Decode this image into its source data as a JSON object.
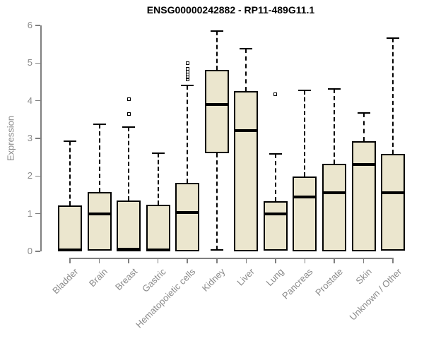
{
  "title": "ENSG00000242882 - RP11-489G11.1",
  "chart_data": {
    "type": "boxplot",
    "title": "ENSG00000242882 - RP11-489G11.1",
    "xlabel": "",
    "ylabel": "Expression",
    "ylim": [
      0,
      6
    ],
    "yticks": [
      0,
      1,
      2,
      3,
      4,
      5,
      6
    ],
    "grid": false,
    "legend": "none",
    "box_fill_color": "#ebe6ce",
    "box_border_color": "#000000",
    "axis_color": "#7f7f7f",
    "tick_label_color": "#8a8a8a",
    "categories": [
      "Bladder",
      "Brain",
      "Breast",
      "Gastric",
      "Hematopoietic cells",
      "Kidney",
      "Liver",
      "Lung",
      "Pancreas",
      "Prostate",
      "Skin",
      "Unknown / Other"
    ],
    "series": [
      {
        "category": "Bladder",
        "whisker_low": 0,
        "q1": 0,
        "median": 0.03,
        "q3": 1.22,
        "whisker_high": 2.93,
        "outliers": []
      },
      {
        "category": "Brain",
        "whisker_low": 0,
        "q1": 0.02,
        "median": 1.0,
        "q3": 1.58,
        "whisker_high": 3.38,
        "outliers": []
      },
      {
        "category": "Breast",
        "whisker_low": 0,
        "q1": 0,
        "median": 0.05,
        "q3": 1.35,
        "whisker_high": 3.3,
        "outliers": [
          3.65,
          4.05
        ]
      },
      {
        "category": "Gastric",
        "whisker_low": 0,
        "q1": 0,
        "median": 0.04,
        "q3": 1.24,
        "whisker_high": 2.6,
        "outliers": []
      },
      {
        "category": "Hematopoietic cells",
        "whisker_low": 0,
        "q1": 0,
        "median": 1.04,
        "q3": 1.82,
        "whisker_high": 4.4,
        "outliers": [
          4.56,
          4.63,
          4.7,
          4.77,
          4.84,
          5.0
        ]
      },
      {
        "category": "Kidney",
        "whisker_low": 0.04,
        "q1": 2.6,
        "median": 3.9,
        "q3": 4.82,
        "whisker_high": 5.85,
        "outliers": []
      },
      {
        "category": "Liver",
        "whisker_low": 0,
        "q1": 0,
        "median": 3.2,
        "q3": 4.25,
        "whisker_high": 5.38,
        "outliers": []
      },
      {
        "category": "Lung",
        "whisker_low": 0,
        "q1": 0.02,
        "median": 1.0,
        "q3": 1.33,
        "whisker_high": 2.58,
        "outliers": [
          4.18
        ]
      },
      {
        "category": "Pancreas",
        "whisker_low": 0,
        "q1": 0,
        "median": 1.44,
        "q3": 1.99,
        "whisker_high": 4.27,
        "outliers": []
      },
      {
        "category": "Prostate",
        "whisker_low": 0,
        "q1": 0,
        "median": 1.55,
        "q3": 2.33,
        "whisker_high": 4.32,
        "outliers": []
      },
      {
        "category": "Skin",
        "whisker_low": 0,
        "q1": 0,
        "median": 2.3,
        "q3": 2.92,
        "whisker_high": 3.67,
        "outliers": []
      },
      {
        "category": "Unknown / Other",
        "whisker_low": 0,
        "q1": 0.02,
        "median": 1.55,
        "q3": 2.58,
        "whisker_high": 5.67,
        "outliers": []
      }
    ]
  }
}
